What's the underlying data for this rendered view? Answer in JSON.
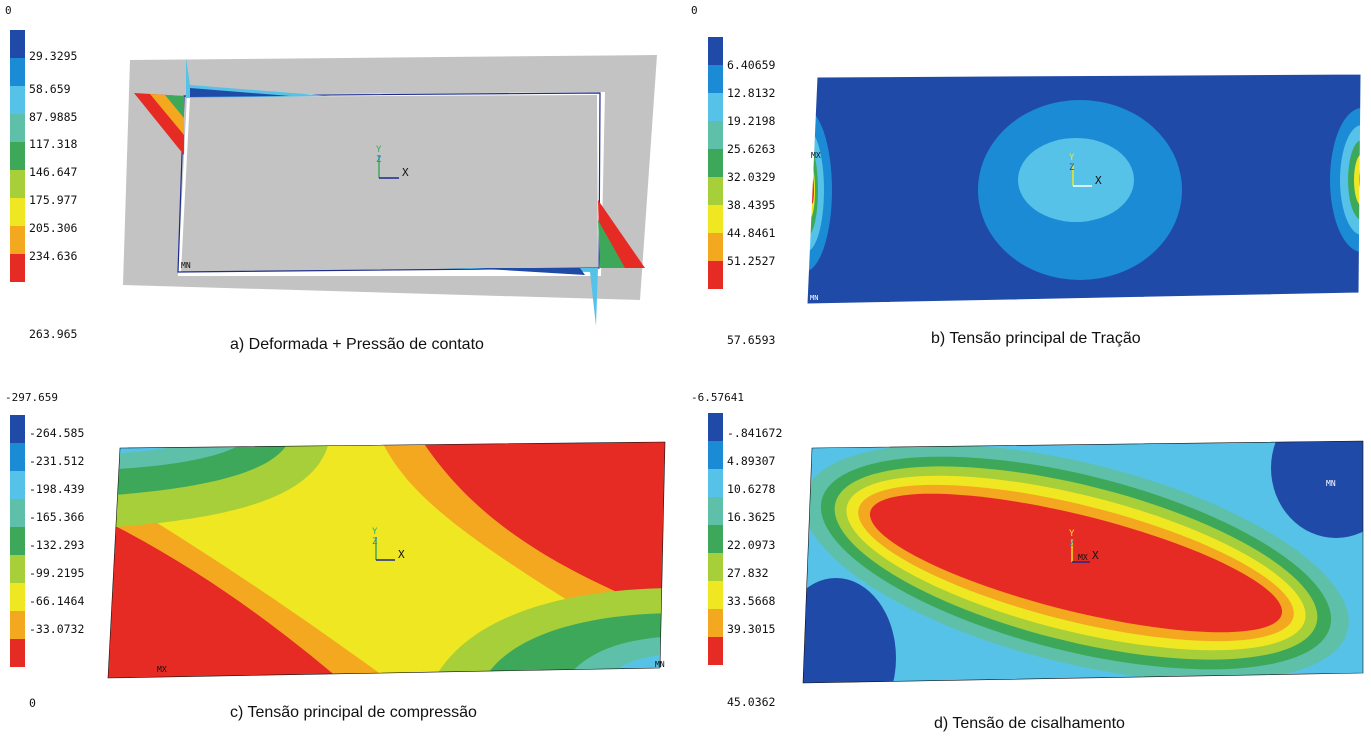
{
  "panels": [
    {
      "caption": "a) Deformada + Pressão de contato",
      "legend_top": "0",
      "legend": [
        "29.3295",
        "58.659",
        "87.9885",
        "117.318",
        "146.647",
        "175.977",
        "205.306",
        "234.636",
        "263.965"
      ],
      "marker": "MN",
      "axis_x": "X",
      "axis_y": "Y",
      "axis_z": "Z"
    },
    {
      "caption": "b) Tensão principal de Tração",
      "legend_top": "0",
      "legend": [
        "6.40659",
        "12.8132",
        "19.2198",
        "25.6263",
        "32.0329",
        "38.4395",
        "44.8461",
        "51.2527",
        "57.6593"
      ],
      "marker_left": "MX",
      "marker_bottom": "MN",
      "axis_x": "X",
      "axis_y": "Y",
      "axis_z": "Z"
    },
    {
      "caption": "c) Tensão principal de compressão",
      "legend_top": "-297.659",
      "legend": [
        "-264.585",
        "-231.512",
        "-198.439",
        "-165.366",
        "-132.293",
        "-99.2195",
        "-66.1464",
        "-33.0732",
        "0"
      ],
      "marker_left": "MX",
      "marker_right": "MN",
      "axis_x": "X",
      "axis_y": "Y",
      "axis_z": "Z"
    },
    {
      "caption": "d) Tensão de cisalhamento",
      "legend_top": "-6.57641",
      "legend": [
        "-.841672",
        "4.89307",
        "10.6278",
        "16.3625",
        "22.0973",
        "27.832",
        "33.5668",
        "39.3015",
        "45.0362"
      ],
      "marker_center": "MX",
      "marker_right": "MN",
      "axis_x": "X",
      "axis_y": "Y",
      "axis_z": "Z"
    }
  ],
  "colors": {
    "legend_scale": [
      "#1f4aa8",
      "#1b8bd6",
      "#56c2e8",
      "#5fc0a9",
      "#3ea85a",
      "#a6cf3a",
      "#f0e723",
      "#f4a81f",
      "#e62a24"
    ],
    "undeformed_gray": "#c3c3c3",
    "outline": "#1c2b8c"
  }
}
